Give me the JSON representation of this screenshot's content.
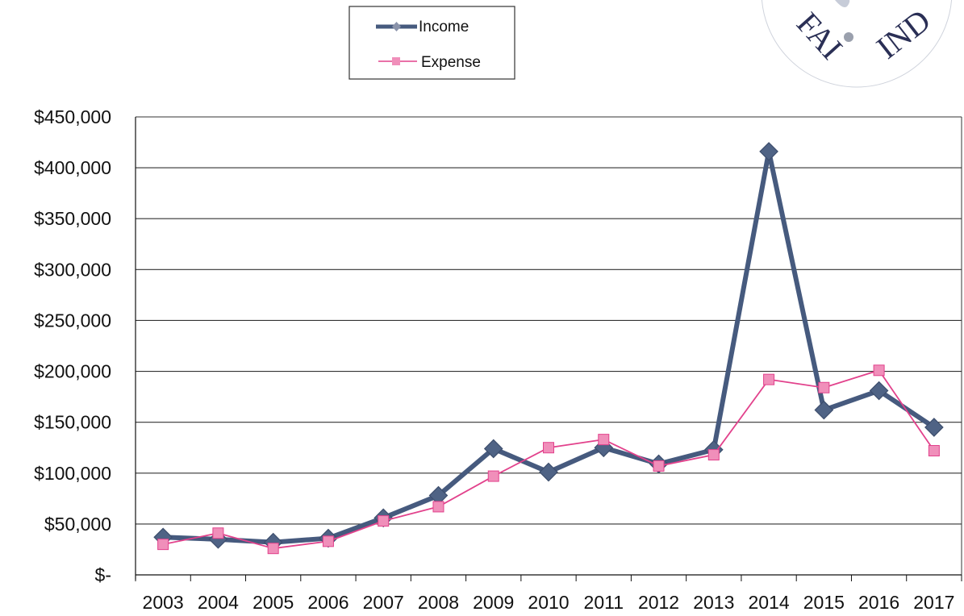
{
  "chart_data": {
    "type": "line",
    "categories": [
      "2003",
      "2004",
      "2005",
      "2006",
      "2007",
      "2008",
      "2009",
      "2010",
      "2011",
      "2012",
      "2013",
      "2014",
      "2015",
      "2016",
      "2017"
    ],
    "series": [
      {
        "name": "Income",
        "color": "#465a7e",
        "marker": "diamond",
        "values": [
          37000,
          35000,
          32000,
          36000,
          56000,
          78000,
          124000,
          101000,
          125000,
          109000,
          123000,
          416000,
          162000,
          181000,
          145000
        ]
      },
      {
        "name": "Expense",
        "color": "#e2428c",
        "marker": "square",
        "values": [
          30000,
          41000,
          26000,
          33000,
          53000,
          67000,
          97000,
          125000,
          133000,
          107000,
          118000,
          192000,
          184000,
          201000,
          122000
        ]
      }
    ],
    "ylim": [
      0,
      450000
    ],
    "yticks": [
      0,
      50000,
      100000,
      150000,
      200000,
      250000,
      300000,
      350000,
      400000,
      450000
    ],
    "yticklabels": [
      "$-",
      "$50,000",
      "$100,000",
      "$150,000",
      "$200,000",
      "$250,000",
      "$300,000",
      "$350,000",
      "$400,000",
      "$450,000"
    ],
    "grid": true,
    "legend": "top-center"
  },
  "stamp": {
    "text": "FAIR FUND"
  }
}
